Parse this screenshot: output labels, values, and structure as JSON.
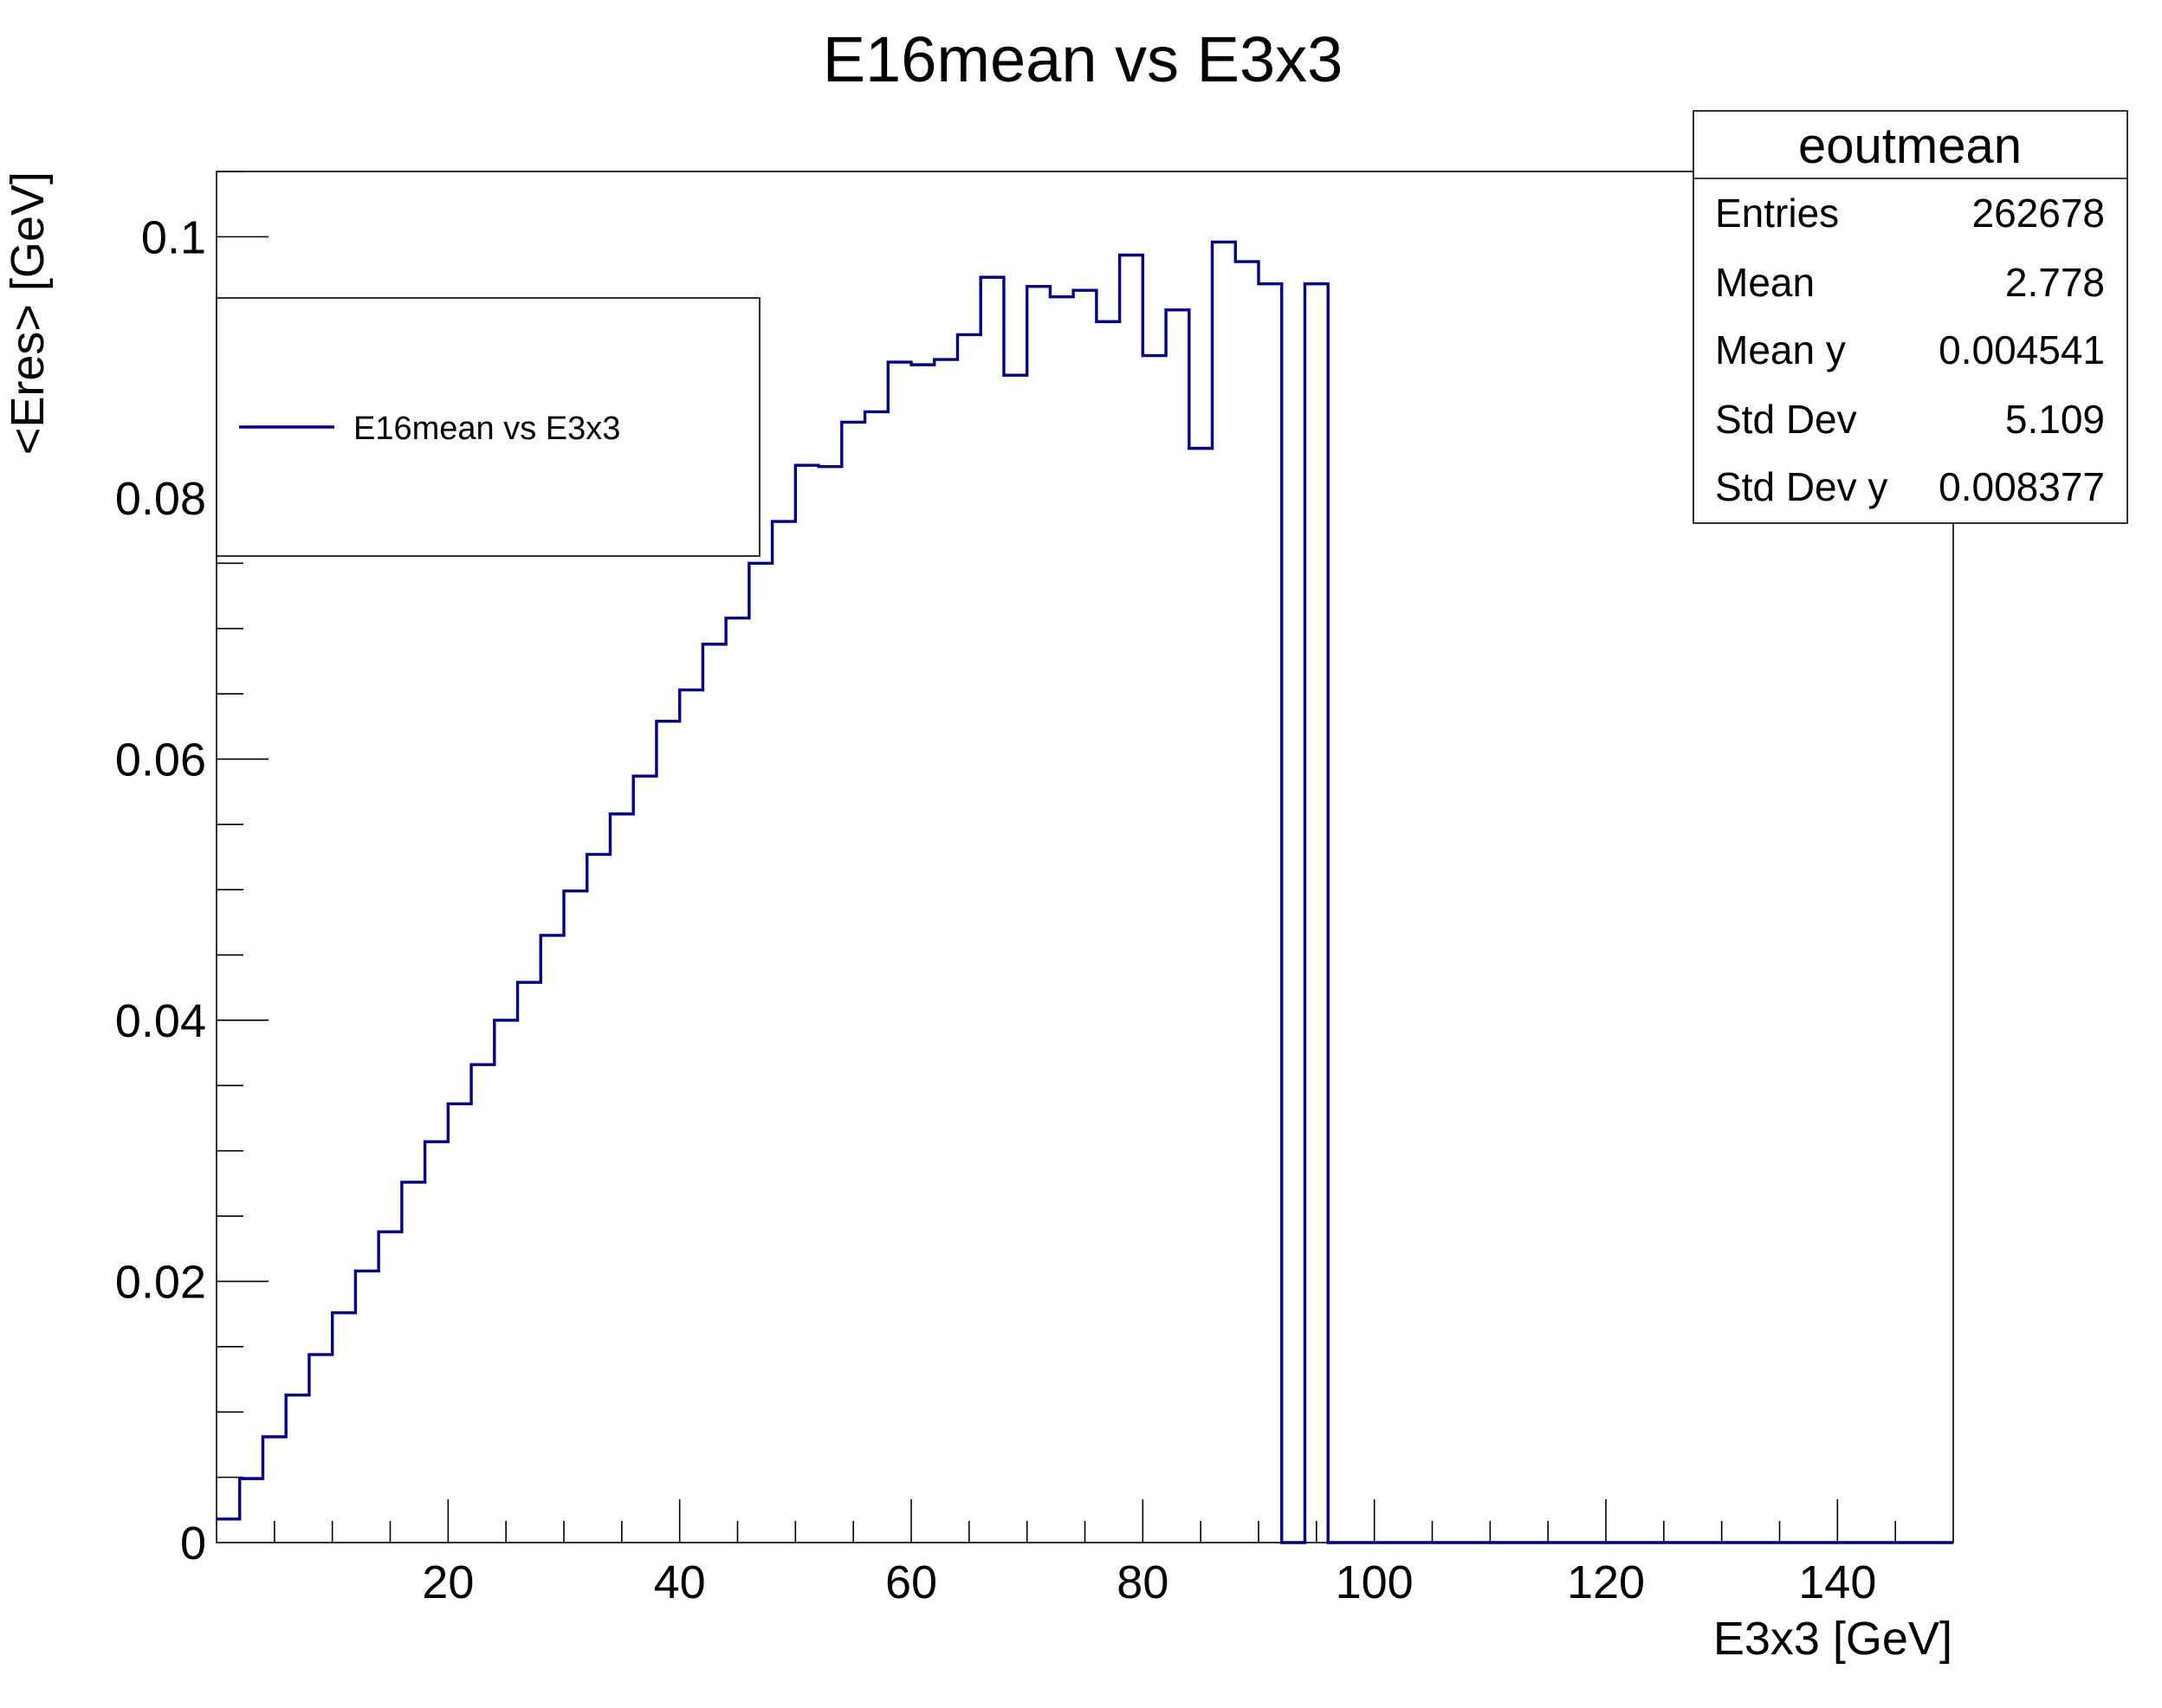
{
  "chart_data": {
    "type": "histogram",
    "title": "E16mean vs E3x3",
    "xlabel": "E3x3 [GeV]",
    "ylabel": "<Eres> [GeV]",
    "xlim": [
      0,
      150
    ],
    "ylim": [
      0,
      0.105
    ],
    "x_ticks": [
      20,
      40,
      60,
      80,
      100,
      120,
      140
    ],
    "x_tick_labels": [
      "20",
      "40",
      "60",
      "80",
      "100",
      "120",
      "140"
    ],
    "y_ticks": [
      0,
      0.02,
      0.04,
      0.06,
      0.08,
      0.1
    ],
    "y_tick_labels": [
      "0",
      "0.02",
      "0.04",
      "0.06",
      "0.08",
      "0.1"
    ],
    "bin_width": 2,
    "bin_low_edges": [
      0,
      2,
      4,
      6,
      8,
      10,
      12,
      14,
      16,
      18,
      20,
      22,
      24,
      26,
      28,
      30,
      32,
      34,
      36,
      38,
      40,
      42,
      44,
      46,
      48,
      50,
      52,
      54,
      56,
      58,
      60,
      62,
      64,
      66,
      68,
      70,
      72,
      74,
      76,
      78,
      80,
      82,
      84,
      86,
      88,
      90,
      92,
      94,
      96,
      98,
      100,
      102,
      104,
      106,
      108,
      110,
      112,
      114,
      116,
      118,
      120,
      122,
      124,
      126,
      128,
      130,
      132,
      134,
      136,
      138,
      140,
      142,
      144,
      146,
      148
    ],
    "values": [
      0.0018,
      0.0049,
      0.0081,
      0.0113,
      0.0144,
      0.0176,
      0.0208,
      0.0238,
      0.0276,
      0.0307,
      0.0336,
      0.0366,
      0.04,
      0.0429,
      0.0465,
      0.0499,
      0.0527,
      0.0558,
      0.0587,
      0.0629,
      0.0653,
      0.0688,
      0.0708,
      0.075,
      0.0782,
      0.0825,
      0.0824,
      0.0858,
      0.0866,
      0.0904,
      0.0902,
      0.0906,
      0.0925,
      0.0969,
      0.0894,
      0.0962,
      0.0954,
      0.0959,
      0.0935,
      0.0986,
      0.0909,
      0.0944,
      0.0838,
      0.0996,
      0.0981,
      0.0964,
      0.0,
      0.0964,
      0.0,
      0.0,
      0.0,
      0.0,
      0.0,
      0.0,
      0.0,
      0.0,
      0.0,
      0.0,
      0.0,
      0.0,
      0.0,
      0.0,
      0.0,
      0.0,
      0.0,
      0.0,
      0.0,
      0.0,
      0.0,
      0.0,
      0.0,
      0.0,
      0.0,
      0.0,
      0.0
    ],
    "line_color": "#000080",
    "legend": {
      "placement": "top-left",
      "entries": [
        {
          "label": "E16mean vs E3x3",
          "color": "#000080"
        }
      ]
    },
    "stats": {
      "title": "eoutmean",
      "placement": "top-right",
      "rows": [
        {
          "label": "Entries",
          "value": "262678"
        },
        {
          "label": "Mean",
          "value": "2.778"
        },
        {
          "label": "Mean y",
          "value": "0.004541"
        },
        {
          "label": "Std Dev",
          "value": "5.109"
        },
        {
          "label": "Std Dev y",
          "value": "0.008377"
        }
      ]
    }
  }
}
